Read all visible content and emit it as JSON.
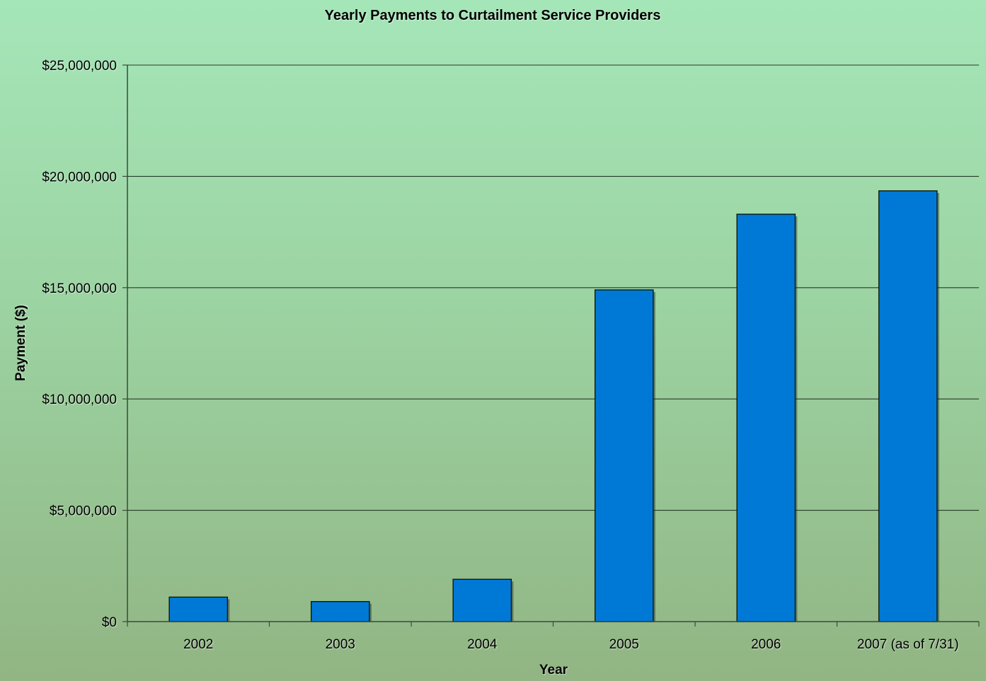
{
  "chart_data": {
    "type": "bar",
    "title": "Yearly Payments to Curtailment Service Providers",
    "xlabel": "Year",
    "ylabel": "Payment ($)",
    "categories": [
      "2002",
      "2003",
      "2004",
      "2005",
      "2006",
      "2007 (as of 7/31)"
    ],
    "values": [
      1100000,
      900000,
      1900000,
      14900000,
      18300000,
      19350000
    ],
    "ylim": [
      0,
      25000000
    ],
    "yticks": [
      0,
      5000000,
      10000000,
      15000000,
      20000000,
      25000000
    ],
    "ytick_labels": [
      "$0",
      "$5,000,000",
      "$10,000,000",
      "$15,000,000",
      "$20,000,000",
      "$25,000,000"
    ],
    "grid": true,
    "legend": "none",
    "bar_color": "#0079d6",
    "grid_color": "#2a3a2a"
  }
}
